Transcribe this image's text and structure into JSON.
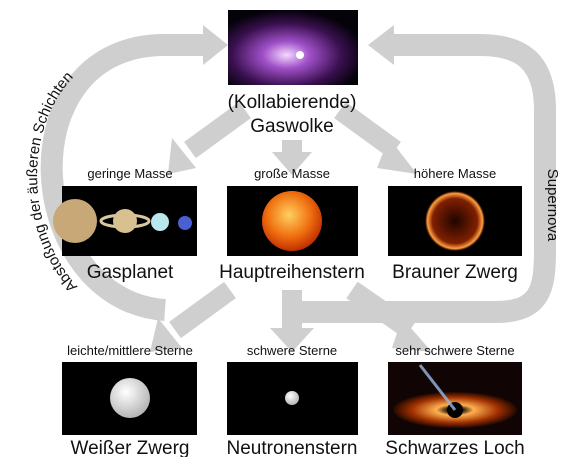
{
  "top": {
    "line1": "(Kollabierende)",
    "line2": "Gaswolke"
  },
  "middle": [
    {
      "condition": "geringe Masse",
      "name": "Gasplanet"
    },
    {
      "condition": "große Masse",
      "name": "Hauptreihenstern"
    },
    {
      "condition": "höhere Masse",
      "name": "Brauner Zwerg"
    }
  ],
  "bottom": [
    {
      "condition": "leichte/mittlere Sterne",
      "name": "Weißer Zwerg"
    },
    {
      "condition": "schwere Sterne",
      "name": "Neutronenstern"
    },
    {
      "condition": "sehr schwere Sterne",
      "name": "Schwarzes Loch"
    }
  ],
  "cycle": {
    "left": "Abstoßung der äußeren Schichten",
    "right": "Supernova"
  }
}
